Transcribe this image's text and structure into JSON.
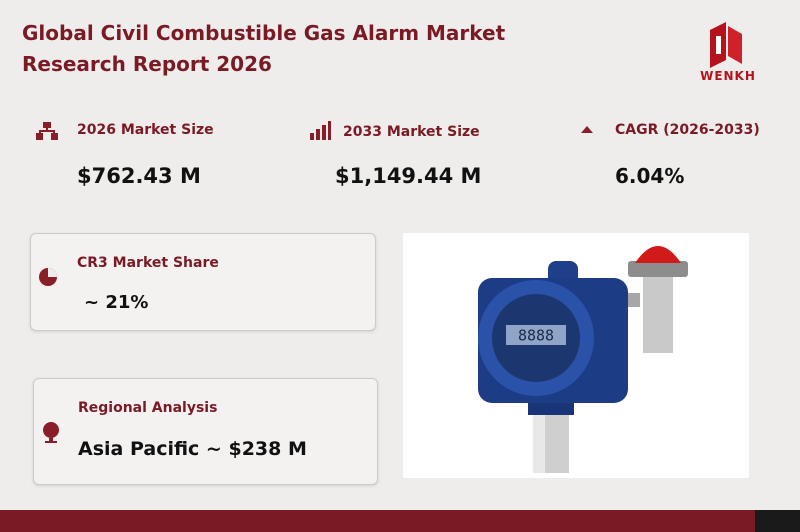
{
  "header": {
    "title": "Global Civil Combustible Gas Alarm Market Research Report 2026",
    "logo": "WENKH"
  },
  "stats": [
    {
      "label": "2026 Market Size",
      "value": "$762.43 M"
    },
    {
      "label": "2033 Market Size",
      "value": "$1,149.44 M"
    },
    {
      "label": "CAGR (2026-2033)",
      "value": "6.04%"
    }
  ],
  "cards": [
    {
      "label": "CR3 Market Share",
      "value": "~ 21%"
    },
    {
      "label": "Regional Analysis",
      "value": "Asia Pacific ~ $238 M"
    }
  ],
  "device": {
    "display": "8888"
  }
}
